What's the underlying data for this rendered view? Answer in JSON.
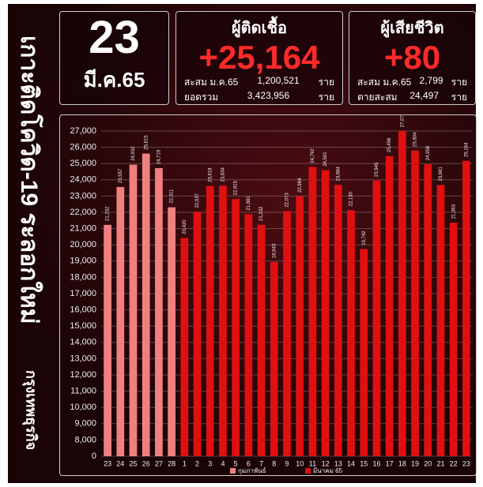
{
  "header": {
    "date_day": "23",
    "date_month": "มี.ค.65",
    "vertical_title": "เกาะติดโควิด-19 ระลอกใหม่",
    "brand": "กรุงเทพธุรกิจ",
    "infected": {
      "title": "ผู้ติดเชื้อ",
      "value": "+25,164",
      "rows": [
        [
          "สะสม ม.ค.65",
          "1,200,521",
          "ราย"
        ],
        [
          "ยอดรวม",
          "3,423,956",
          "ราย"
        ]
      ]
    },
    "deaths": {
      "title": "ผู้เสียชีวิต",
      "value": "+80",
      "rows": [
        [
          "สะสม ม.ค.65",
          "2,799",
          "ราย"
        ],
        [
          "ตายสะสม",
          "24,497",
          "ราย"
        ]
      ]
    }
  },
  "chart_data": {
    "type": "bar",
    "categories": [
      "23",
      "24",
      "25",
      "26",
      "27",
      "28",
      "1",
      "2",
      "3",
      "4",
      "5",
      "6",
      "7",
      "8",
      "9",
      "10",
      "11",
      "12",
      "13",
      "14",
      "15",
      "16",
      "17",
      "18",
      "19",
      "20",
      "21",
      "22",
      "23"
    ],
    "series": [
      {
        "name": "กุมภาพันธ์",
        "color": "#f08080",
        "values": [
          21232,
          23557,
          24932,
          25615,
          24719,
          22311,
          null,
          null,
          null,
          null,
          null,
          null,
          null,
          null,
          null,
          null,
          null,
          null,
          null,
          null,
          null,
          null,
          null,
          null,
          null,
          null,
          null,
          null,
          null
        ],
        "value_labels": [
          "21,232",
          "23,557",
          "24,932",
          "25,615",
          "24,719",
          "22,311",
          null,
          null,
          null,
          null,
          null,
          null,
          null,
          null,
          null,
          null,
          null,
          null,
          null,
          null,
          null,
          null,
          null,
          null,
          null,
          null,
          null,
          null,
          null
        ]
      },
      {
        "name": "มีนาคม 65",
        "color": "#e01010",
        "values": [
          null,
          null,
          null,
          null,
          null,
          null,
          20420,
          22037,
          23618,
          23634,
          22815,
          21881,
          21232,
          18943,
          22073,
          22984,
          24792,
          24591,
          23684,
          22130,
          19742,
          23945,
          25456,
          27071,
          25804,
          24956,
          23681,
          21363,
          25164
        ],
        "value_labels": [
          null,
          null,
          null,
          null,
          null,
          null,
          "20,420",
          "22,037",
          "23,618",
          "23,634",
          "22,815",
          "21,881",
          "21,232",
          "18,943",
          "22,073",
          "22,984",
          "24,792",
          "24,591",
          "23,684",
          "22,130",
          "19,742",
          "23,945",
          "25,456",
          "27,071",
          "25,804",
          "24,956",
          "23,681",
          "21,363",
          "25,164"
        ]
      }
    ],
    "ylim": [
      0,
      27000
    ],
    "yticks": [
      0,
      {
        "value": 8000,
        "label": "8,000"
      },
      {
        "value": 9000,
        "label": "9,000"
      },
      {
        "value": 10000,
        "label": "10,000"
      },
      {
        "value": 11000,
        "label": "11,000"
      },
      {
        "value": 12000,
        "label": "12,000"
      },
      {
        "value": 13000,
        "label": "13,000"
      },
      {
        "value": 14000,
        "label": "14,000"
      },
      {
        "value": 15000,
        "label": "15,000"
      },
      {
        "value": 16000,
        "label": "16,000"
      },
      {
        "value": 17000,
        "label": "17,000"
      },
      {
        "value": 18000,
        "label": "18,000"
      },
      {
        "value": 19000,
        "label": "19,000"
      },
      {
        "value": 20000,
        "label": "20,000"
      },
      {
        "value": 21000,
        "label": "21,000"
      },
      {
        "value": 22000,
        "label": "22,000"
      },
      {
        "value": 23000,
        "label": "23,000"
      },
      {
        "value": 24000,
        "label": "24,000"
      },
      {
        "value": 25000,
        "label": "25,000"
      },
      {
        "value": 26000,
        "label": "26,000"
      },
      {
        "value": 27000,
        "label": "27,000"
      }
    ],
    "grid": true,
    "legend": "bottom"
  }
}
